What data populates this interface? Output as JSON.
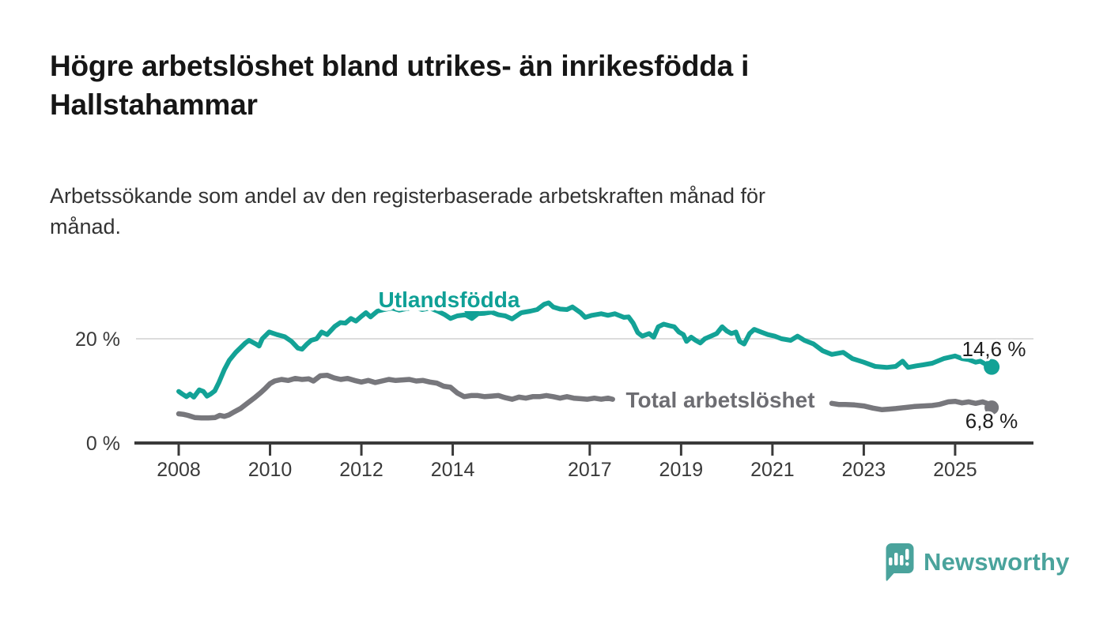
{
  "title": {
    "lines": [
      "Högre arbetslöshet bland utrikes- än inrikesfödda i",
      "Hallstahammar"
    ]
  },
  "subtitle": {
    "lines": [
      "Arbetssökande som andel av den registerbaserade arbetskraften månad för",
      "månad."
    ],
    "full_text": "Arbetssökande som andel av den registerbaserade arbetskraften månad för månad."
  },
  "chart_data": {
    "type": "line",
    "title": "Högre arbetslöshet bland utrikes- än inrikesfödda i Hallstahammar",
    "subtitle": "Arbetssökande som andel av den registerbaserade arbetskraften månad för månad.",
    "unit": "%",
    "grid": true,
    "legend_position": "inline-labels",
    "x_axis": {
      "tick_years": [
        2008,
        2010,
        2012,
        2014,
        2017,
        2019,
        2021,
        2023,
        2025
      ],
      "tick_labels": [
        "2008",
        "2010",
        "2012",
        "2014",
        "2017",
        "2019",
        "2021",
        "2023",
        "2025"
      ],
      "range": [
        2008,
        2026.7
      ]
    },
    "y_axis": {
      "ticks": [
        {
          "value": 0,
          "label": "0 %"
        },
        {
          "value": 20,
          "label": "20 %"
        }
      ],
      "range": [
        0,
        30
      ]
    },
    "series": [
      {
        "name": "Utlandsfödda",
        "color": "#13a296",
        "end_label": "14,6 %",
        "end_value": 14.6,
        "points": [
          [
            2008.0,
            9.9
          ],
          [
            2008.08,
            9.4
          ],
          [
            2008.17,
            8.9
          ],
          [
            2008.25,
            9.4
          ],
          [
            2008.33,
            8.8
          ],
          [
            2008.45,
            10.2
          ],
          [
            2008.54,
            9.9
          ],
          [
            2008.62,
            9.0
          ],
          [
            2008.7,
            9.4
          ],
          [
            2008.79,
            10.0
          ],
          [
            2008.88,
            11.6
          ],
          [
            2009.0,
            14.1
          ],
          [
            2009.11,
            15.9
          ],
          [
            2009.25,
            17.4
          ],
          [
            2009.46,
            19.2
          ],
          [
            2009.54,
            19.7
          ],
          [
            2009.69,
            19.0
          ],
          [
            2009.76,
            18.6
          ],
          [
            2009.83,
            20.0
          ],
          [
            2009.98,
            21.3
          ],
          [
            2010.15,
            20.8
          ],
          [
            2010.32,
            20.4
          ],
          [
            2010.47,
            19.5
          ],
          [
            2010.61,
            18.2
          ],
          [
            2010.7,
            18.0
          ],
          [
            2010.81,
            19.0
          ],
          [
            2010.9,
            19.7
          ],
          [
            2011.02,
            20.0
          ],
          [
            2011.13,
            21.3
          ],
          [
            2011.25,
            20.8
          ],
          [
            2011.42,
            22.4
          ],
          [
            2011.54,
            23.1
          ],
          [
            2011.65,
            23.0
          ],
          [
            2011.77,
            23.9
          ],
          [
            2011.88,
            23.4
          ],
          [
            2012.0,
            24.3
          ],
          [
            2012.1,
            25.0
          ],
          [
            2012.2,
            24.2
          ],
          [
            2012.35,
            25.3
          ],
          [
            2012.5,
            25.6
          ],
          [
            2012.67,
            25.9
          ],
          [
            2012.83,
            25.5
          ],
          [
            2013.0,
            25.8
          ],
          [
            2013.17,
            26.0
          ],
          [
            2013.33,
            25.6
          ],
          [
            2013.5,
            25.9
          ],
          [
            2013.67,
            25.3
          ],
          [
            2013.83,
            24.6
          ],
          [
            2013.95,
            23.9
          ],
          [
            2014.1,
            24.4
          ],
          [
            2014.28,
            24.6
          ],
          [
            2014.42,
            23.9
          ],
          [
            2014.55,
            24.8
          ],
          [
            2014.7,
            24.9
          ],
          [
            2014.85,
            25.1
          ],
          [
            2015.0,
            24.6
          ],
          [
            2015.15,
            24.4
          ],
          [
            2015.3,
            23.8
          ],
          [
            2015.5,
            25.0
          ],
          [
            2015.7,
            25.3
          ],
          [
            2015.85,
            25.6
          ],
          [
            2016.0,
            26.6
          ],
          [
            2016.1,
            26.9
          ],
          [
            2016.2,
            26.1
          ],
          [
            2016.35,
            25.7
          ],
          [
            2016.5,
            25.6
          ],
          [
            2016.62,
            26.1
          ],
          [
            2016.8,
            25.0
          ],
          [
            2016.9,
            24.1
          ],
          [
            2017.05,
            24.5
          ],
          [
            2017.25,
            24.8
          ],
          [
            2017.4,
            24.5
          ],
          [
            2017.55,
            24.8
          ],
          [
            2017.75,
            24.1
          ],
          [
            2017.85,
            24.2
          ],
          [
            2017.95,
            23.0
          ],
          [
            2018.05,
            21.2
          ],
          [
            2018.15,
            20.5
          ],
          [
            2018.3,
            21.0
          ],
          [
            2018.4,
            20.3
          ],
          [
            2018.5,
            22.3
          ],
          [
            2018.62,
            22.8
          ],
          [
            2018.75,
            22.5
          ],
          [
            2018.85,
            22.3
          ],
          [
            2018.95,
            21.3
          ],
          [
            2019.05,
            20.8
          ],
          [
            2019.12,
            19.5
          ],
          [
            2019.22,
            20.3
          ],
          [
            2019.32,
            19.7
          ],
          [
            2019.42,
            19.2
          ],
          [
            2019.52,
            20.0
          ],
          [
            2019.65,
            20.5
          ],
          [
            2019.78,
            21.0
          ],
          [
            2019.9,
            22.3
          ],
          [
            2020.0,
            21.5
          ],
          [
            2020.1,
            21.0
          ],
          [
            2020.2,
            21.3
          ],
          [
            2020.28,
            19.5
          ],
          [
            2020.38,
            19.0
          ],
          [
            2020.5,
            21.0
          ],
          [
            2020.6,
            21.8
          ],
          [
            2020.75,
            21.3
          ],
          [
            2020.9,
            20.8
          ],
          [
            2021.05,
            20.5
          ],
          [
            2021.2,
            20.0
          ],
          [
            2021.4,
            19.7
          ],
          [
            2021.55,
            20.5
          ],
          [
            2021.7,
            19.7
          ],
          [
            2021.9,
            19.0
          ],
          [
            2022.1,
            17.7
          ],
          [
            2022.3,
            17.0
          ],
          [
            2022.55,
            17.4
          ],
          [
            2022.75,
            16.2
          ],
          [
            2023.0,
            15.5
          ],
          [
            2023.25,
            14.7
          ],
          [
            2023.5,
            14.5
          ],
          [
            2023.7,
            14.7
          ],
          [
            2023.85,
            15.7
          ],
          [
            2023.97,
            14.5
          ],
          [
            2024.15,
            14.8
          ],
          [
            2024.3,
            15.0
          ],
          [
            2024.5,
            15.3
          ],
          [
            2024.75,
            16.2
          ],
          [
            2025.0,
            16.7
          ],
          [
            2025.15,
            16.2
          ],
          [
            2025.3,
            16.0
          ],
          [
            2025.45,
            15.5
          ],
          [
            2025.55,
            15.7
          ],
          [
            2025.65,
            15.2
          ],
          [
            2025.8,
            14.6
          ]
        ]
      },
      {
        "name": "Total arbetslöshet",
        "color": "#77777c",
        "end_label": "6,8 %",
        "end_value": 6.8,
        "segments": [
          [
            [
              2008.0,
              5.6
            ],
            [
              2008.1,
              5.5
            ],
            [
              2008.2,
              5.3
            ],
            [
              2008.35,
              4.9
            ],
            [
              2008.5,
              4.8
            ],
            [
              2008.65,
              4.8
            ],
            [
              2008.8,
              4.9
            ],
            [
              2008.9,
              5.3
            ],
            [
              2009.0,
              5.1
            ],
            [
              2009.1,
              5.4
            ],
            [
              2009.2,
              5.9
            ],
            [
              2009.35,
              6.6
            ],
            [
              2009.5,
              7.6
            ],
            [
              2009.65,
              8.6
            ],
            [
              2009.8,
              9.7
            ],
            [
              2009.9,
              10.5
            ],
            [
              2010.0,
              11.4
            ],
            [
              2010.1,
              11.9
            ],
            [
              2010.25,
              12.2
            ],
            [
              2010.4,
              12.0
            ],
            [
              2010.55,
              12.4
            ],
            [
              2010.7,
              12.2
            ],
            [
              2010.85,
              12.3
            ],
            [
              2010.95,
              11.9
            ],
            [
              2011.1,
              12.9
            ],
            [
              2011.25,
              13.0
            ],
            [
              2011.4,
              12.5
            ],
            [
              2011.55,
              12.2
            ],
            [
              2011.7,
              12.4
            ],
            [
              2011.85,
              12.0
            ],
            [
              2012.0,
              11.7
            ],
            [
              2012.15,
              12.0
            ],
            [
              2012.3,
              11.6
            ],
            [
              2012.45,
              11.9
            ],
            [
              2012.6,
              12.2
            ],
            [
              2012.75,
              12.0
            ],
            [
              2012.9,
              12.1
            ],
            [
              2013.05,
              12.2
            ],
            [
              2013.2,
              11.9
            ],
            [
              2013.35,
              12.0
            ],
            [
              2013.5,
              11.7
            ],
            [
              2013.65,
              11.5
            ],
            [
              2013.8,
              10.9
            ],
            [
              2013.95,
              10.7
            ],
            [
              2014.1,
              9.6
            ],
            [
              2014.25,
              8.9
            ],
            [
              2014.4,
              9.1
            ],
            [
              2014.55,
              9.1
            ],
            [
              2014.7,
              8.9
            ],
            [
              2014.85,
              9.0
            ],
            [
              2015.0,
              9.1
            ],
            [
              2015.15,
              8.7
            ],
            [
              2015.3,
              8.4
            ],
            [
              2015.45,
              8.8
            ],
            [
              2015.6,
              8.6
            ],
            [
              2015.75,
              8.9
            ],
            [
              2015.9,
              8.9
            ],
            [
              2016.05,
              9.1
            ],
            [
              2016.2,
              8.9
            ],
            [
              2016.35,
              8.6
            ],
            [
              2016.5,
              8.9
            ],
            [
              2016.65,
              8.6
            ],
            [
              2016.8,
              8.5
            ],
            [
              2016.95,
              8.4
            ],
            [
              2017.1,
              8.6
            ],
            [
              2017.25,
              8.4
            ],
            [
              2017.4,
              8.6
            ],
            [
              2017.5,
              8.4
            ]
          ],
          [
            [
              2022.3,
              7.6
            ],
            [
              2022.45,
              7.4
            ],
            [
              2022.6,
              7.4
            ],
            [
              2022.8,
              7.3
            ],
            [
              2023.0,
              7.1
            ],
            [
              2023.2,
              6.7
            ],
            [
              2023.4,
              6.4
            ],
            [
              2023.55,
              6.5
            ],
            [
              2023.7,
              6.6
            ],
            [
              2023.9,
              6.8
            ],
            [
              2024.1,
              7.0
            ],
            [
              2024.3,
              7.1
            ],
            [
              2024.5,
              7.2
            ],
            [
              2024.65,
              7.4
            ],
            [
              2024.85,
              7.9
            ],
            [
              2025.0,
              8.0
            ],
            [
              2025.15,
              7.7
            ],
            [
              2025.3,
              7.9
            ],
            [
              2025.45,
              7.6
            ],
            [
              2025.6,
              7.9
            ],
            [
              2025.7,
              7.6
            ],
            [
              2025.8,
              6.8
            ]
          ]
        ]
      }
    ]
  },
  "labels": {
    "utlandsfodda_color": "#0fa096",
    "total_color": "#6d6d72"
  },
  "branding": {
    "logo_text": "Newsworthy",
    "logo_icon": "newsworthy-speech-bubble-chart-icon",
    "brand_color": "#4aa39c"
  }
}
